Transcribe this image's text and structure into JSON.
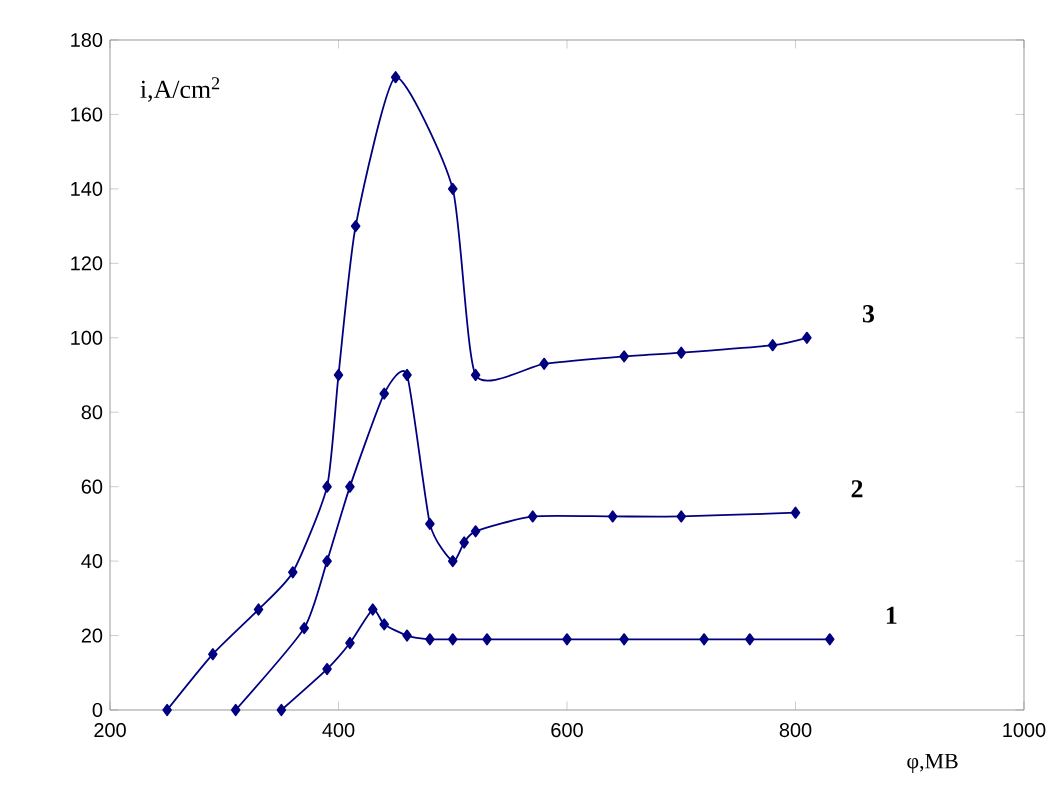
{
  "chart_data": {
    "type": "line",
    "xlabel": "φ,MB",
    "ylabel": "i,A/cm$^{2}$",
    "xlim": [
      200,
      1000
    ],
    "ylim": [
      0,
      180
    ],
    "xticks": [
      200,
      400,
      600,
      800,
      1000
    ],
    "yticks": [
      0,
      20,
      40,
      60,
      80,
      100,
      120,
      140,
      160,
      180
    ],
    "marker": "diamond",
    "grid": false,
    "series": [
      {
        "name": "1",
        "color": "#000080",
        "x": [
          350,
          390,
          410,
          430,
          440,
          460,
          480,
          500,
          530,
          600,
          650,
          720,
          760,
          830
        ],
        "values": [
          0,
          11,
          18,
          27,
          23,
          20,
          19,
          19,
          19,
          19,
          19,
          19,
          19,
          19
        ]
      },
      {
        "name": "2",
        "color": "#000080",
        "x": [
          310,
          370,
          390,
          410,
          440,
          460,
          480,
          500,
          510,
          520,
          570,
          640,
          700,
          800
        ],
        "values": [
          0,
          22,
          40,
          60,
          85,
          90,
          50,
          40,
          45,
          48,
          52,
          52,
          52,
          53
        ]
      },
      {
        "name": "3",
        "color": "#000080",
        "x": [
          250,
          290,
          330,
          360,
          390,
          400,
          415,
          450,
          500,
          520,
          580,
          650,
          700,
          780,
          810
        ],
        "values": [
          0,
          15,
          27,
          37,
          60,
          90,
          130,
          170,
          140,
          90,
          93,
          95,
          96,
          98,
          100
        ]
      }
    ]
  }
}
